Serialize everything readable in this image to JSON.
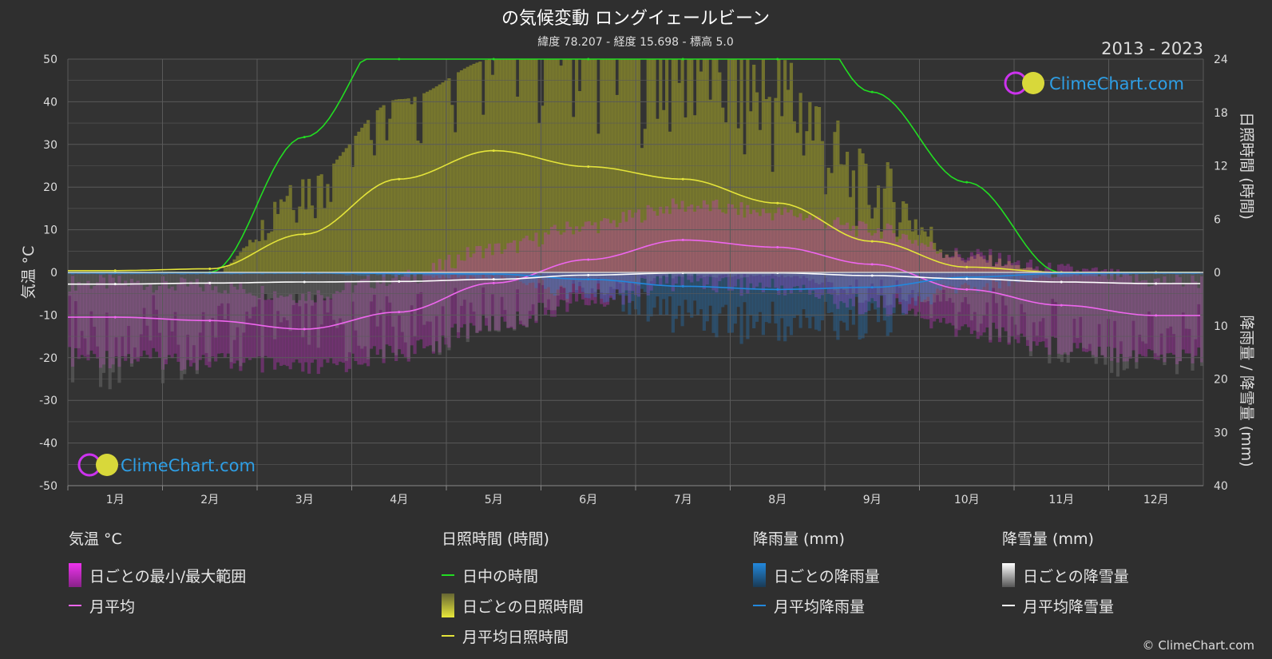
{
  "header": {
    "title": "の気候変動 ロングイェールビーン",
    "subtitle": "緯度 78.207 - 経度 15.698 - 標高 5.0",
    "years": "2013 - 2023"
  },
  "watermark": "ClimeChart.com",
  "copyright": "© ClimeChart.com",
  "colors": {
    "background": "#2f2f2f",
    "plot_bg": "#333333",
    "daylight": "#22dd22",
    "sunshine_line": "#e4e43a",
    "sunshine_fill": "#a6a62a",
    "temp_range": "#cc33cc",
    "temp_avg": "#ee66ee",
    "rain": "#2288dd",
    "snow": "#ffffff"
  },
  "legend": {
    "temperature": {
      "title": "気温 °C",
      "range": "日ごとの最小/最大範囲",
      "avg": "月平均"
    },
    "sunshine": {
      "title": "日照時間 (時間)",
      "daylight": "日中の時間",
      "daily": "日ごとの日照時間",
      "avg": "月平均日照時間"
    },
    "rain": {
      "title": "降雨量 (mm)",
      "daily": "日ごとの降雨量",
      "avg": "月平均降雨量"
    },
    "snow": {
      "title": "降雪量 (mm)",
      "daily": "日ごとの降雪量",
      "avg": "月平均降雪量"
    }
  },
  "chart_data": {
    "type": "line",
    "categories": [
      "1月",
      "2月",
      "3月",
      "4月",
      "5月",
      "6月",
      "7月",
      "8月",
      "9月",
      "10月",
      "11月",
      "12月"
    ],
    "axes": {
      "left": {
        "label": "気温 °C",
        "range": [
          -50,
          50
        ],
        "ticks": [
          50,
          40,
          30,
          20,
          10,
          0,
          -10,
          -20,
          -30,
          -40,
          -50
        ]
      },
      "right_top": {
        "label": "日照時間 (時間)",
        "range": [
          0,
          24
        ],
        "ticks": [
          24,
          18,
          12,
          6,
          0
        ]
      },
      "right_bottom": {
        "label": "降雨量 / 降雪量 (mm)",
        "range": [
          0,
          40
        ],
        "ticks": [
          10,
          20,
          30,
          40
        ]
      }
    },
    "grid": true,
    "series": [
      {
        "name": "月平均",
        "unit": "°C",
        "values": [
          -10.5,
          -11.3,
          -13.3,
          -9.3,
          -2.5,
          3.0,
          7.6,
          5.9,
          1.9,
          -4.0,
          -7.7,
          -10.1
        ]
      },
      {
        "name": "日中の時間",
        "unit": "h",
        "values": [
          0,
          0,
          10.5,
          19.5,
          24,
          24,
          24,
          24,
          14,
          7,
          0,
          0
        ]
      },
      {
        "name": "月平均日照時間",
        "unit": "h",
        "values": [
          0.2,
          0.4,
          4.3,
          10.5,
          13.7,
          11.9,
          10.5,
          7.8,
          3.5,
          0.6,
          0,
          0
        ]
      },
      {
        "name": "月平均降雨量",
        "unit": "mm",
        "values": [
          0.1,
          0.1,
          0.1,
          0.2,
          0.3,
          1.3,
          2.6,
          3.2,
          2.8,
          0.9,
          0.2,
          0.1
        ]
      },
      {
        "name": "月平均降雪量",
        "unit": "mm",
        "values": [
          2.2,
          2.0,
          1.8,
          1.7,
          1.3,
          0.5,
          0.1,
          0.1,
          0.6,
          1.2,
          1.8,
          2.1
        ]
      }
    ]
  }
}
